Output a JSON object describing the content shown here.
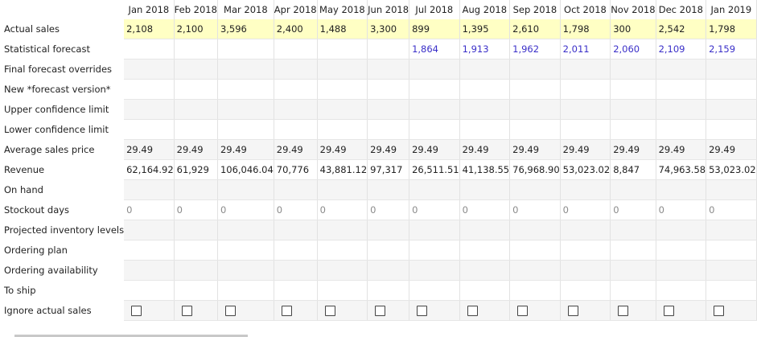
{
  "columns": [
    "Jan 2018",
    "Feb 2018",
    "Mar 2018",
    "Apr 2018",
    "May 2018",
    "Jun 2018",
    "Jul 2018",
    "Aug 2018",
    "Sep 2018",
    "Oct 2018",
    "Nov 2018",
    "Dec 2018",
    "Jan 2019"
  ],
  "rows": [
    {
      "label": "Actual sales",
      "style": "yellow",
      "values": [
        "2,108",
        "2,100",
        "3,596",
        "2,400",
        "1,488",
        "3,300",
        "899",
        "1,395",
        "2,610",
        "1,798",
        "300",
        "2,542",
        "1,798"
      ]
    },
    {
      "label": "Statistical forecast",
      "style": "white",
      "cell_style": "forecast",
      "values": [
        "",
        "",
        "",
        "",
        "",
        "",
        "1,864",
        "1,913",
        "1,962",
        "2,011",
        "2,060",
        "2,109",
        "2,159"
      ]
    },
    {
      "label": "Final forecast overrides",
      "style": "grey",
      "values": []
    },
    {
      "label": "New *forecast version*",
      "style": "white",
      "values": []
    },
    {
      "label": "Upper confidence limit",
      "style": "grey",
      "values": []
    },
    {
      "label": "Lower confidence limit",
      "style": "white",
      "values": []
    },
    {
      "label": "Average sales price",
      "style": "grey",
      "values": [
        "29.49",
        "29.49",
        "29.49",
        "29.49",
        "29.49",
        "29.49",
        "29.49",
        "29.49",
        "29.49",
        "29.49",
        "29.49",
        "29.49",
        "29.49"
      ]
    },
    {
      "label": "Revenue",
      "style": "white",
      "values": [
        "62,164.92",
        "61,929",
        "106,046.04",
        "70,776",
        "43,881.12",
        "97,317",
        "26,511.51",
        "41,138.55",
        "76,968.90",
        "53,023.02",
        "8,847",
        "74,963.58",
        "53,023.02"
      ]
    },
    {
      "label": "On hand",
      "style": "grey",
      "values": []
    },
    {
      "label": "Stockout days",
      "style": "white",
      "cell_style": "muted",
      "values": [
        "0",
        "0",
        "0",
        "0",
        "0",
        "0",
        "0",
        "0",
        "0",
        "0",
        "0",
        "0",
        "0"
      ]
    },
    {
      "label": "Projected inventory levels",
      "style": "grey",
      "values": []
    },
    {
      "label": "Ordering plan",
      "style": "white",
      "values": []
    },
    {
      "label": "Ordering availability",
      "style": "grey",
      "values": []
    },
    {
      "label": "To ship",
      "style": "white",
      "values": []
    },
    {
      "label": "Ignore actual sales",
      "style": "grey",
      "checkbox": true,
      "checked": [
        false,
        false,
        false,
        false,
        false,
        false,
        false,
        false,
        false,
        false,
        false,
        false,
        false
      ]
    }
  ]
}
